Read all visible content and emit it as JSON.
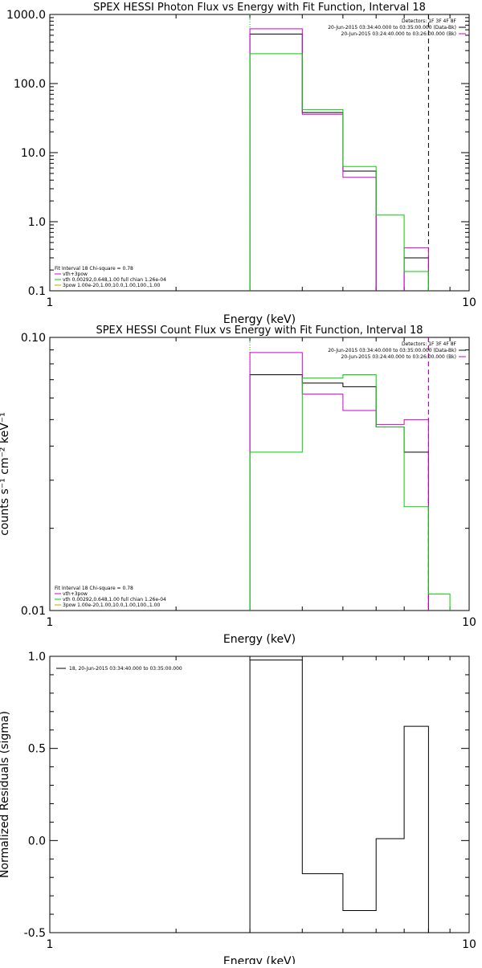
{
  "chart_data": [
    {
      "type": "line",
      "title": "SPEX HESSI Photon Flux vs Energy with Fit Function, Interval 18",
      "xlabel": "Energy (keV)",
      "ylabel": "",
      "xscale": "log",
      "yscale": "log",
      "xlim": [
        1,
        10
      ],
      "ylim": [
        0.1,
        1000
      ],
      "xticks": [
        {
          "v": 1,
          "label": "1"
        },
        {
          "v": 10,
          "label": "10"
        }
      ],
      "yticks": [
        {
          "v": 0.1,
          "label": "0.1"
        },
        {
          "v": 1,
          "label": "1.0"
        },
        {
          "v": 10,
          "label": "10.0"
        },
        {
          "v": 100,
          "label": "100.0"
        },
        {
          "v": 1000,
          "label": "1000.0"
        }
      ],
      "vlines": [
        {
          "x": 3.0,
          "style": "dotted",
          "color": "#00c800"
        },
        {
          "x": 8.0,
          "style": "dashed",
          "color": "#000000"
        }
      ],
      "edges": [
        3.0,
        4.0,
        5.0,
        6.0,
        7.0,
        8.0
      ],
      "series": [
        {
          "color": "#000000",
          "values": [
            520,
            38,
            5.4,
            null,
            0.3
          ]
        },
        {
          "color": "#d000d0",
          "values": [
            620,
            36,
            4.4,
            null,
            0.42
          ]
        },
        {
          "color": "#00d000",
          "values": [
            270,
            42,
            6.3,
            1.25,
            0.19
          ]
        }
      ],
      "legend_top": {
        "position": "top-right",
        "lines": [
          {
            "text": "Detectors: 1F 3F 4F 8F",
            "color": ""
          },
          {
            "text": "20-Jun-2015 03:34:40.000 to 03:35:00.000 (Data-Bk)",
            "color": "#000000"
          },
          {
            "text": "20-Jun-2015 03:24:40.000 to 03:26:00.000 (Bk)",
            "color": "#d000d0"
          }
        ]
      },
      "legend_bottom": {
        "position": "bottom-left",
        "lines": [
          {
            "text": "Fit Interval 18   Chi-square = 0.78",
            "color": ""
          },
          {
            "text": "vth+3pow",
            "color": "#d000d0"
          },
          {
            "text": "vth 0.00292,0.648,1.00  full chian 1.26e-04",
            "color": "#00d000"
          },
          {
            "text": "3pow 1.00e-20,1.00,10.0,1.00,100.,1.00",
            "color": "#c8a000"
          }
        ]
      }
    },
    {
      "type": "line",
      "title": "SPEX HESSI Count Flux vs Energy with Fit Function, Interval 18",
      "xlabel": "Energy (keV)",
      "ylabel": "counts s⁻¹ cm⁻² keV⁻¹",
      "xscale": "log",
      "yscale": "log",
      "xlim": [
        1,
        10
      ],
      "ylim": [
        0.01,
        0.1
      ],
      "xticks": [
        {
          "v": 1,
          "label": "1"
        },
        {
          "v": 10,
          "label": "10"
        }
      ],
      "yticks": [
        {
          "v": 0.01,
          "label": "0.01"
        },
        {
          "v": 0.1,
          "label": "0.10"
        }
      ],
      "vlines": [
        {
          "x": 3.0,
          "style": "dotted",
          "color": "#00c800"
        },
        {
          "x": 8.0,
          "style": "dashed",
          "color": "#000000"
        },
        {
          "x": 8.0,
          "style": "dashed",
          "color": "#d000d0"
        }
      ],
      "edges": [
        3.0,
        4.0,
        5.0,
        6.0,
        7.0,
        8.0,
        9.0
      ],
      "series": [
        {
          "color": "#000000",
          "values": [
            0.073,
            0.068,
            0.066,
            0.047,
            0.038,
            null
          ]
        },
        {
          "color": "#d000d0",
          "values": [
            0.088,
            0.062,
            0.054,
            0.048,
            0.05,
            null
          ]
        },
        {
          "color": "#00d000",
          "values": [
            0.038,
            0.071,
            0.073,
            0.047,
            0.024,
            0.0115
          ]
        }
      ],
      "legend_top": {
        "position": "top-right",
        "lines": [
          {
            "text": "Detectors: 1F 3F 4F 8F",
            "color": ""
          },
          {
            "text": "20-Jun-2015 03:34:40.000 to 03:35:00.000 (Data-Bk)",
            "color": "#000000"
          },
          {
            "text": "20-Jun-2015 03:24:40.000 to 03:26:00.000 (Bk)",
            "color": "#d000d0"
          }
        ]
      },
      "legend_bottom": {
        "position": "bottom-left",
        "lines": [
          {
            "text": "Fit Interval 18   Chi-square = 0.78",
            "color": ""
          },
          {
            "text": "vth+3pow",
            "color": "#d000d0"
          },
          {
            "text": "vth 0.00292,0.648,1.00  full chian 1.26e-04",
            "color": "#00d000"
          },
          {
            "text": "3pow 1.00e-20,1.00,10.0,1.00,100.,1.00",
            "color": "#c8a000"
          }
        ]
      }
    },
    {
      "type": "line",
      "title": "",
      "xlabel": "Energy (keV)",
      "ylabel": "Normalized Residuals (sigma)",
      "xscale": "log",
      "yscale": "linear",
      "xlim": [
        1,
        10
      ],
      "ylim": [
        -0.5,
        1.0
      ],
      "xticks": [
        {
          "v": 1,
          "label": "1"
        },
        {
          "v": 10,
          "label": "10"
        }
      ],
      "yticks": [
        {
          "v": -0.5,
          "label": "-0.5"
        },
        {
          "v": 0.0,
          "label": "0.0"
        },
        {
          "v": 0.5,
          "label": "0.5"
        },
        {
          "v": 1.0,
          "label": "1.0"
        }
      ],
      "vlines": [],
      "edges": [
        3.0,
        4.0,
        5.0,
        6.0,
        7.0,
        8.0
      ],
      "series": [
        {
          "color": "#000000",
          "values": [
            0.98,
            -0.18,
            -0.38,
            0.01,
            0.62
          ]
        }
      ],
      "legend_top": {
        "position": "top-left",
        "lines": [
          {
            "text": "18, 20-Jun-2015 03:34:40.000 to 03:35:00.000",
            "color": "#000000"
          }
        ]
      },
      "legend_bottom": {
        "position": "bottom-left",
        "lines": []
      }
    }
  ]
}
